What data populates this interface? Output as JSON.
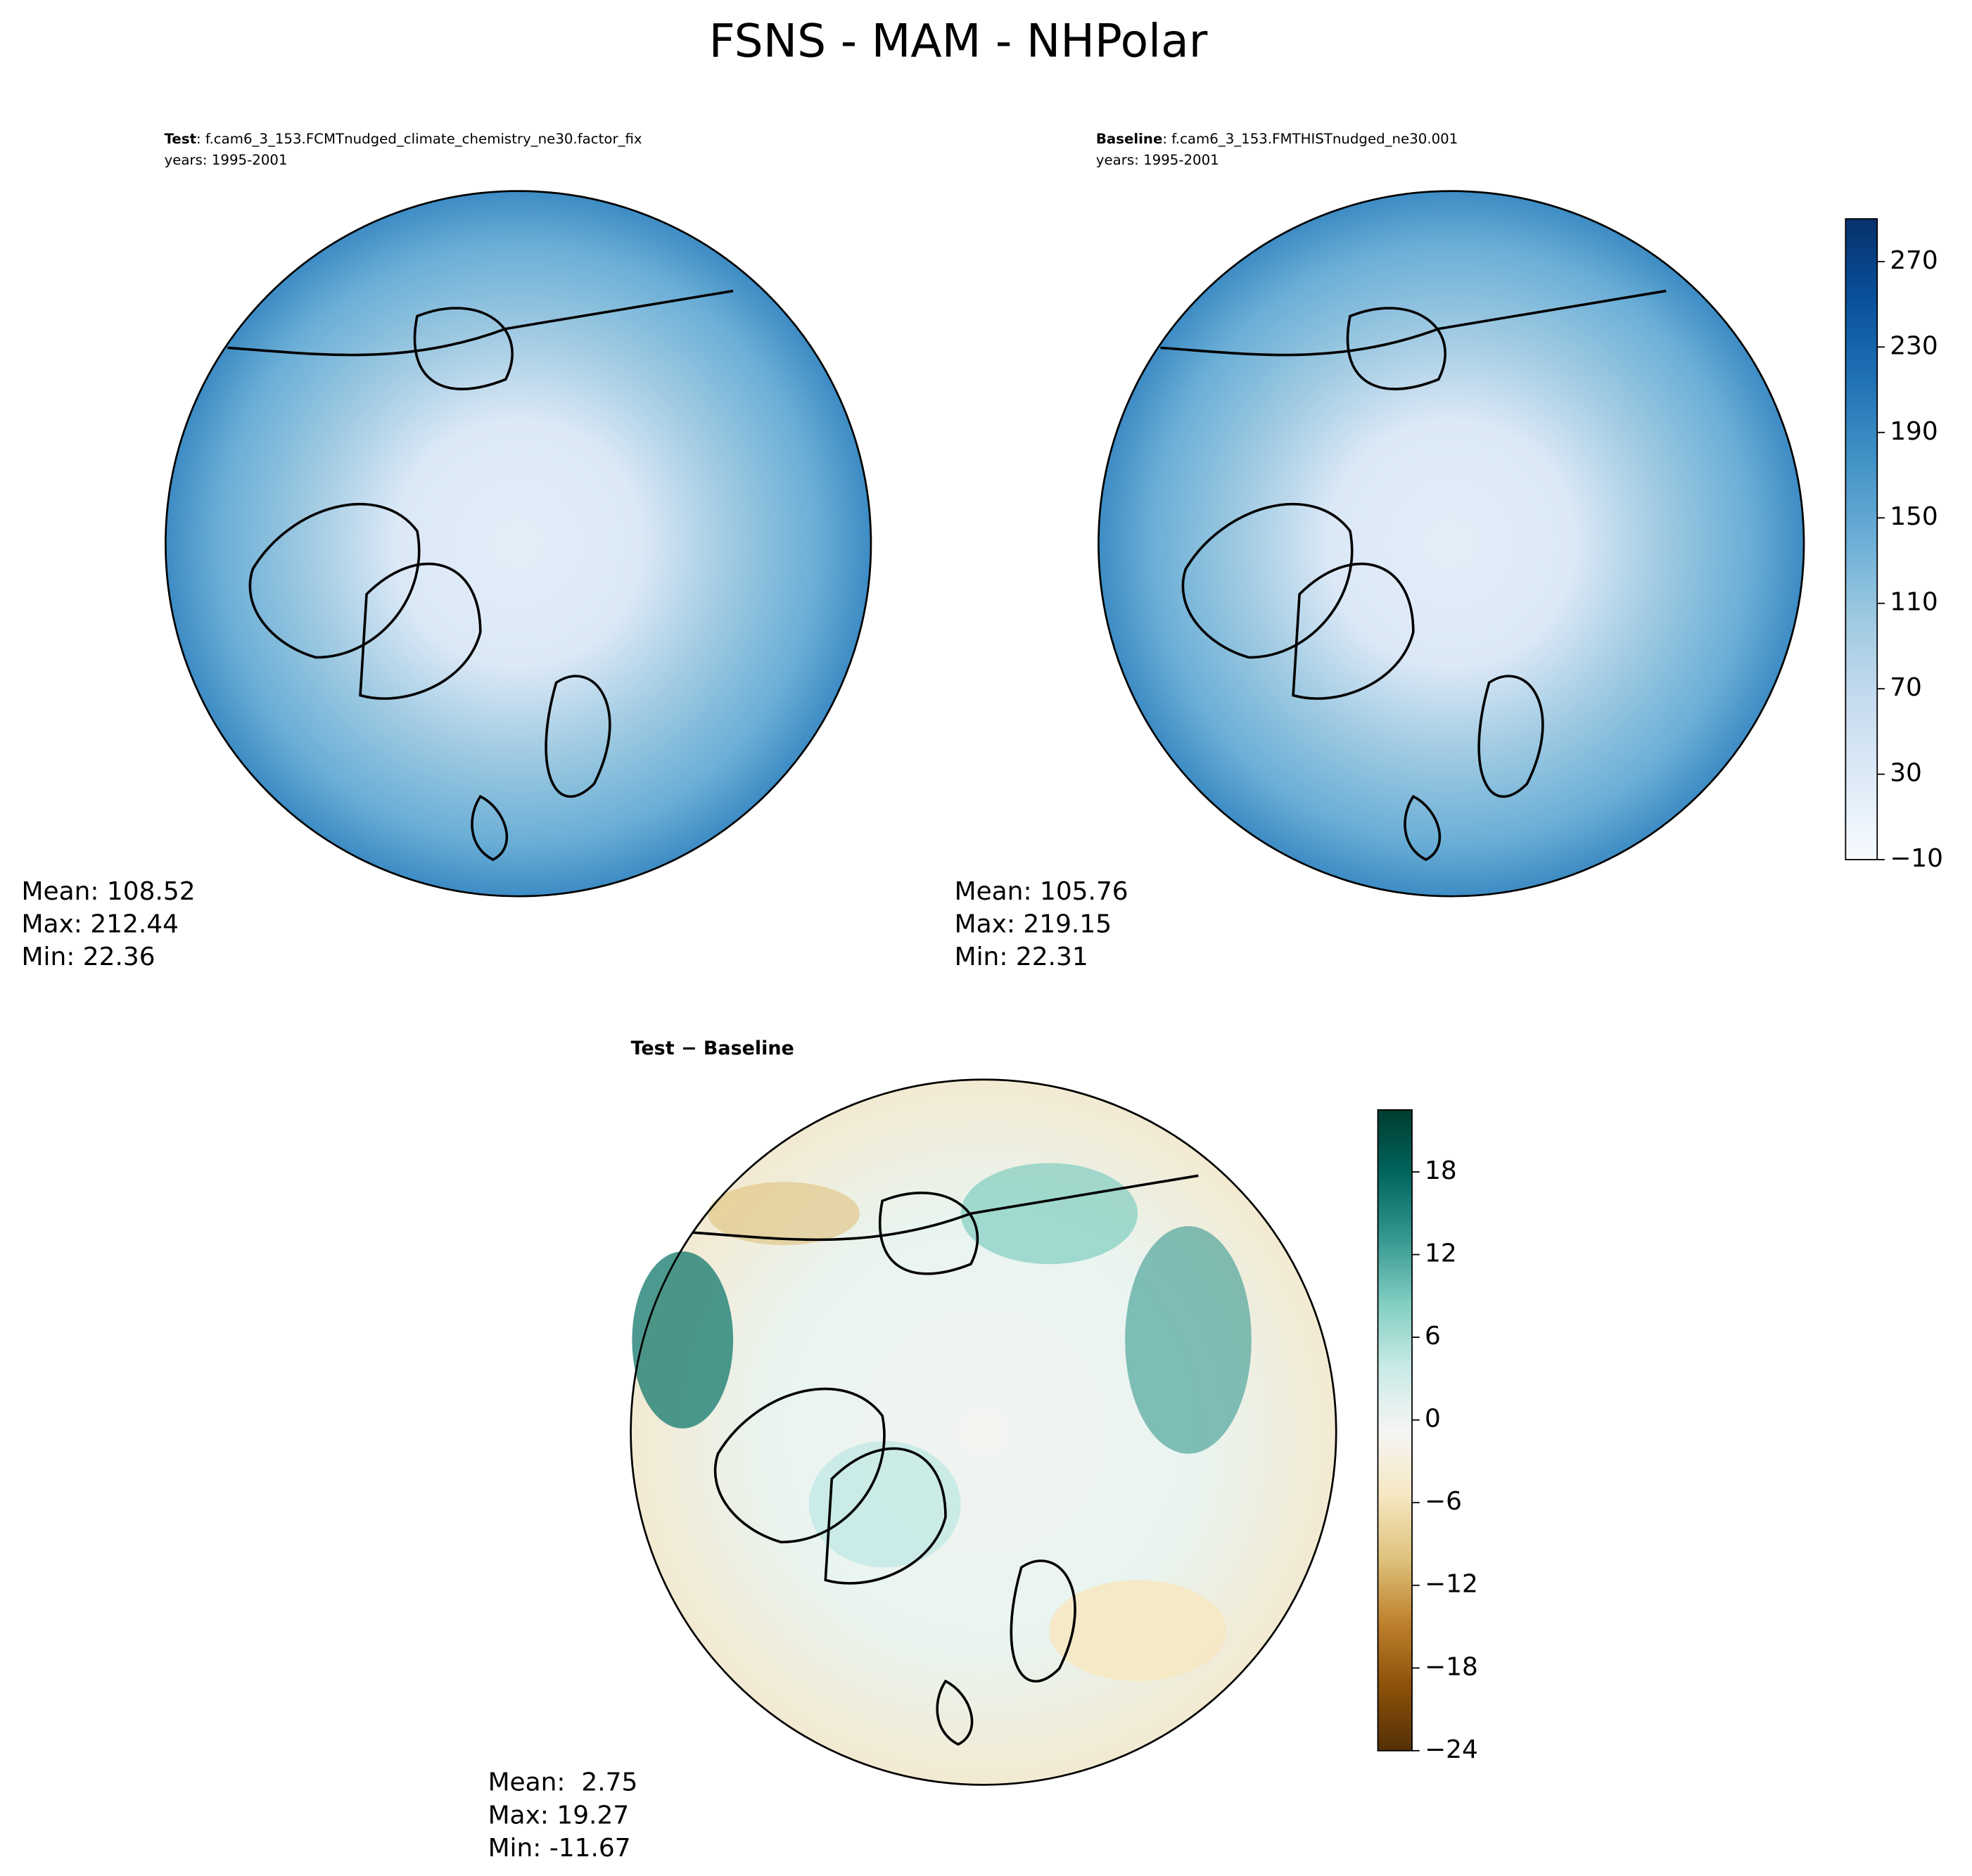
{
  "title": "FSNS - MAM - NHPolar",
  "panels": [
    {
      "label": "Test",
      "case": ": f.cam6_3_153.FCMTnudged_climate_chemistry_ne30.factor_fix",
      "years": "years: 1995-2001",
      "stats": [
        "Mean: 108.52",
        "Max: 212.44",
        "Min: 22.36"
      ]
    },
    {
      "label": "Baseline",
      "case": ": f.cam6_3_153.FMTHISTnudged_ne30.001",
      "years": "years: 1995-2001",
      "stats": [
        "Mean: 105.76",
        "Max: 219.15",
        "Min: 22.31"
      ]
    },
    {
      "label": "Test − Baseline",
      "stats": [
        "Mean:  2.75",
        "Max: 19.27",
        "Min: -11.67"
      ]
    }
  ],
  "colorbars": [
    {
      "lim": [
        -10,
        290
      ],
      "ticks": [
        {
          "value": -10,
          "label": "−10"
        },
        30,
        70,
        110,
        150,
        190,
        230,
        270
      ],
      "colors": [
        "#f7fbff",
        "#deebf7",
        "#c6dbef",
        "#9ecae1",
        "#6baed6",
        "#4292c6",
        "#2171b5",
        "#08519c",
        "#08306b"
      ]
    },
    {
      "lim": [
        -24,
        22.5
      ],
      "ticks": [
        {
          "value": -24,
          "label": "−24"
        },
        {
          "value": -18,
          "label": "−18"
        },
        {
          "value": -12,
          "label": "−12"
        },
        {
          "value": -6,
          "label": "−6"
        },
        0,
        6,
        12,
        18
      ],
      "colors": [
        "#543005",
        "#8c510a",
        "#bf812d",
        "#dfc27d",
        "#f6e8c3",
        "#f5f5f5",
        "#c7eae5",
        "#80cdc1",
        "#35978f",
        "#01665e",
        "#003c30"
      ]
    }
  ]
}
